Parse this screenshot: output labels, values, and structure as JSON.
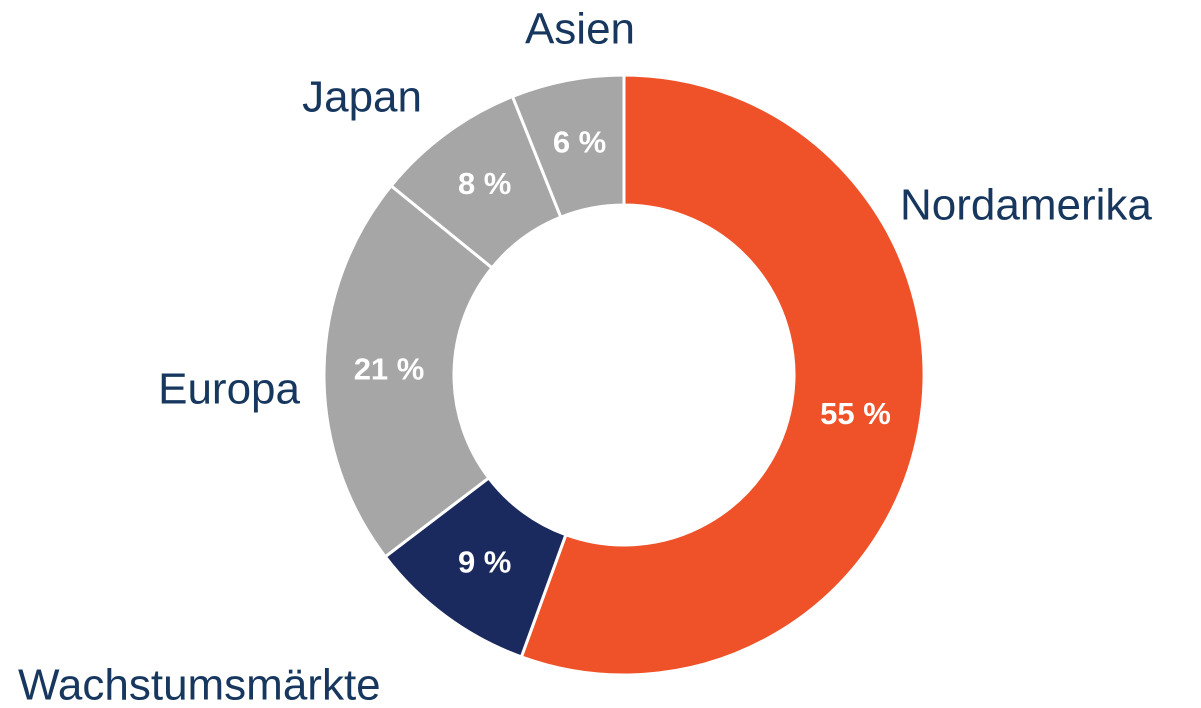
{
  "chart_data": {
    "type": "donut",
    "categories": [
      "Nordamerika",
      "Wachstumsmärkte",
      "Europa",
      "Japan",
      "Asien"
    ],
    "values": [
      55,
      9,
      21,
      8,
      6
    ],
    "value_labels": [
      "55 %",
      "9 %",
      "21 %",
      "8 %",
      "6 %"
    ],
    "colors": [
      "#ef5229",
      "#1b2a5e",
      "#a6a6a6",
      "#a6a6a6",
      "#a6a6a6"
    ]
  }
}
